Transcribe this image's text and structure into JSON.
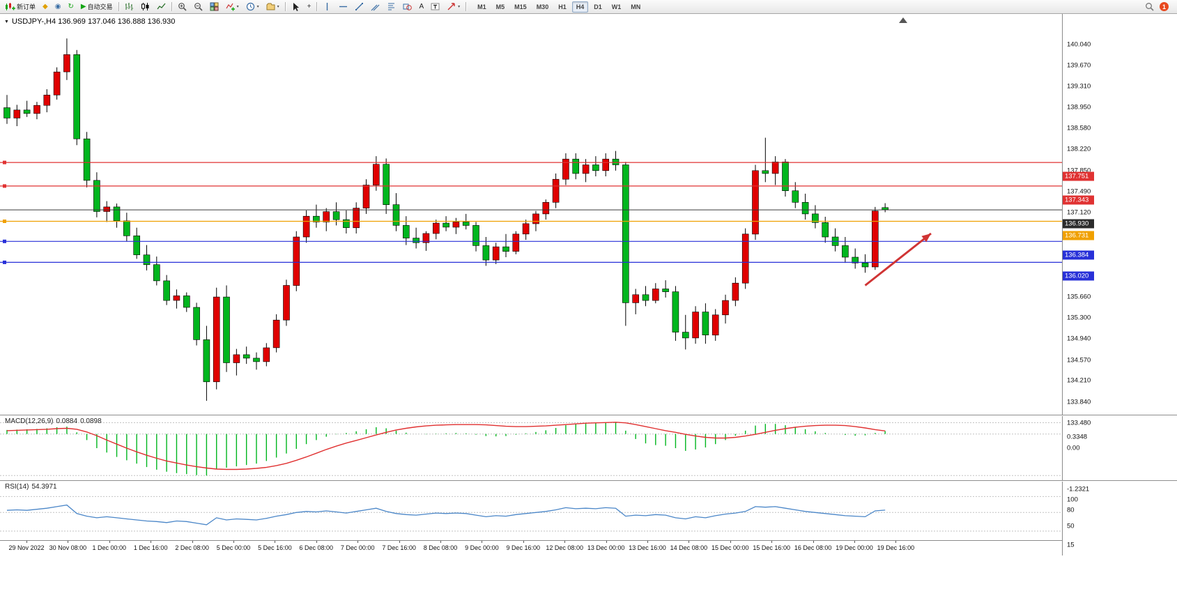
{
  "toolbar": {
    "new_order_label": "新订单",
    "autotrading_label": "自动交易",
    "notification_count": "1",
    "timeframes": [
      "M1",
      "M5",
      "M15",
      "M30",
      "H1",
      "H4",
      "D1",
      "W1",
      "MN"
    ],
    "active_timeframe": "H4",
    "buttons": [
      {
        "name": "new-order-button",
        "shape": "newOrder",
        "label": "新订单"
      },
      {
        "name": "economic-calendar-button",
        "glyph": "◆",
        "color": "#e0a000",
        "icon": "calendar-icon"
      },
      {
        "name": "market-depth-button",
        "glyph": "◉",
        "color": "#3a6ea5",
        "icon": "market-depth-icon"
      },
      {
        "name": "refresh-button",
        "glyph": "↻",
        "color": "#13a513",
        "icon": "refresh-icon"
      },
      {
        "name": "autotrading-button",
        "glyph": "▶",
        "color": "#13a513",
        "icon": "autotrading-play-icon",
        "label": "自动交易"
      },
      {
        "sep": true
      },
      {
        "name": "bar-chart-button",
        "shape": "bars"
      },
      {
        "name": "candlestick-chart-button",
        "shape": "candles"
      },
      {
        "name": "line-chart-button",
        "shape": "linechart"
      },
      {
        "sep": true
      },
      {
        "name": "zoom-in-button",
        "shape": "zoomin"
      },
      {
        "name": "zoom-out-button",
        "shape": "zoomout"
      },
      {
        "name": "tile-windows-button",
        "shape": "tile"
      },
      {
        "name": "indicators-button",
        "shape": "indicators",
        "caret": true
      },
      {
        "name": "periods-button",
        "shape": "clock",
        "caret": true
      },
      {
        "name": "templates-button",
        "shape": "templates",
        "caret": true
      },
      {
        "sep": true
      },
      {
        "name": "cursor-button",
        "shape": "cursor"
      },
      {
        "name": "crosshair-button",
        "glyph": "+",
        "color": "#333",
        "icon": "crosshair-icon"
      },
      {
        "sep": true
      },
      {
        "name": "vertical-line-button",
        "shape": "vline"
      },
      {
        "name": "horizontal-line-button",
        "shape": "hline"
      },
      {
        "name": "trendline-button",
        "shape": "tline"
      },
      {
        "name": "channel-button",
        "shape": "channel"
      },
      {
        "name": "fibonacci-button",
        "shape": "fibo"
      },
      {
        "name": "shapes-button",
        "shape": "shapes"
      },
      {
        "name": "text-button",
        "glyph": "A",
        "color": "#222",
        "icon": "text-icon"
      },
      {
        "name": "text-label-button",
        "shape": "labelT"
      },
      {
        "name": "arrows-button",
        "shape": "arrows",
        "caret": true
      },
      {
        "sep": true
      }
    ]
  },
  "chart": {
    "symbol": "USDJPY-",
    "period": "H4",
    "title": "USDJPY-,H4  136.969 137.046 136.888 136.930",
    "ohlc": {
      "open": "136.969",
      "high": "137.046",
      "low": "136.888",
      "close": "136.930"
    }
  },
  "indicators": {
    "macd": {
      "name": "MACD(12,26,9)",
      "value_main": "0.0884",
      "value_signal": "0.0898"
    },
    "rsi": {
      "name": "RSI(14)",
      "value": "54.3971"
    }
  },
  "chart_data": {
    "type": "candlestick",
    "title": "USDJPY- H4",
    "ylim": [
      133.42,
      140.24
    ],
    "grid": false,
    "colors": {
      "up": "#e00000",
      "down": "#00b61e",
      "wick": "#000000",
      "macd_hist": "#00b61e",
      "macd_signal": "#e03030",
      "rsi": "#4a86c8",
      "arrow": "#d03434"
    },
    "price_axis_ticks": [
      "140.040",
      "139.670",
      "139.310",
      "138.950",
      "138.580",
      "138.220",
      "137.850",
      "137.490",
      "137.120",
      "135.660",
      "135.300",
      "134.940",
      "134.570",
      "134.210",
      "133.840",
      "133.480"
    ],
    "levels": [
      {
        "name": "resistance-line-1",
        "price": 137.751,
        "label": "137.751",
        "color": "#e03232"
      },
      {
        "name": "resistance-line-2",
        "price": 137.343,
        "label": "137.343",
        "color": "#e03232"
      },
      {
        "name": "current-price-line",
        "price": 136.93,
        "label": "136.930",
        "color": "#3a3a3a",
        "current": true
      },
      {
        "name": "pivot-line",
        "price": 136.731,
        "label": "136.731",
        "color": "#f0a000"
      },
      {
        "name": "support-line-1",
        "price": 136.384,
        "label": "136.384",
        "color": "#2830d8"
      },
      {
        "name": "support-line-2",
        "price": 136.02,
        "label": "136.020",
        "color": "#2830d8"
      }
    ],
    "arrow": {
      "from": {
        "bar": 86.0,
        "price": 135.62
      },
      "to": {
        "bar": 92.6,
        "price": 136.52
      }
    },
    "time_labels": [
      "29 Nov 2022",
      "30 Nov 08:00",
      "1 Dec 00:00",
      "1 Dec 16:00",
      "2 Dec 08:00",
      "5 Dec 00:00",
      "5 Dec 16:00",
      "6 Dec 08:00",
      "7 Dec 00:00",
      "7 Dec 16:00",
      "8 Dec 08:00",
      "9 Dec 00:00",
      "9 Dec 16:00",
      "12 Dec 08:00",
      "13 Dec 00:00",
      "13 Dec 16:00",
      "14 Dec 08:00",
      "15 Dec 00:00",
      "15 Dec 16:00",
      "16 Dec 08:00",
      "19 Dec 00:00",
      "19 Dec 16:00"
    ],
    "candles": [
      [
        138.7,
        138.92,
        138.42,
        138.52
      ],
      [
        138.52,
        138.75,
        138.38,
        138.66
      ],
      [
        138.66,
        138.82,
        138.54,
        138.6
      ],
      [
        138.6,
        138.8,
        138.5,
        138.74
      ],
      [
        138.74,
        139.02,
        138.62,
        138.92
      ],
      [
        138.92,
        139.4,
        138.84,
        139.32
      ],
      [
        139.32,
        139.9,
        139.18,
        139.62
      ],
      [
        139.62,
        139.7,
        138.05,
        138.16
      ],
      [
        138.16,
        138.28,
        137.32,
        137.44
      ],
      [
        137.44,
        137.58,
        136.8,
        136.9
      ],
      [
        136.9,
        137.08,
        136.72,
        136.98
      ],
      [
        136.98,
        137.04,
        136.62,
        136.74
      ],
      [
        136.74,
        136.88,
        136.38,
        136.48
      ],
      [
        136.48,
        136.62,
        136.08,
        136.15
      ],
      [
        136.15,
        136.32,
        135.88,
        135.98
      ],
      [
        135.98,
        136.12,
        135.62,
        135.7
      ],
      [
        135.7,
        135.8,
        135.28,
        135.36
      ],
      [
        135.36,
        135.55,
        135.22,
        135.44
      ],
      [
        135.44,
        135.5,
        135.16,
        135.24
      ],
      [
        135.24,
        135.32,
        134.58,
        134.68
      ],
      [
        134.68,
        134.92,
        133.62,
        133.95
      ],
      [
        133.95,
        135.58,
        133.82,
        135.42
      ],
      [
        135.42,
        135.62,
        134.12,
        134.28
      ],
      [
        134.28,
        134.52,
        134.06,
        134.42
      ],
      [
        134.42,
        134.56,
        134.26,
        134.36
      ],
      [
        134.36,
        134.46,
        134.16,
        134.3
      ],
      [
        134.3,
        134.62,
        134.22,
        134.54
      ],
      [
        134.54,
        135.12,
        134.46,
        135.02
      ],
      [
        135.02,
        135.72,
        134.92,
        135.62
      ],
      [
        135.62,
        136.56,
        135.52,
        136.46
      ],
      [
        136.46,
        136.92,
        136.36,
        136.82
      ],
      [
        136.82,
        137.02,
        136.62,
        136.72
      ],
      [
        136.72,
        136.96,
        136.56,
        136.9
      ],
      [
        136.9,
        137.06,
        136.66,
        136.76
      ],
      [
        136.76,
        136.92,
        136.52,
        136.62
      ],
      [
        136.62,
        137.06,
        136.52,
        136.96
      ],
      [
        136.96,
        137.46,
        136.86,
        137.36
      ],
      [
        137.36,
        137.86,
        137.26,
        137.72
      ],
      [
        137.72,
        137.82,
        136.86,
        137.02
      ],
      [
        137.02,
        137.22,
        136.56,
        136.66
      ],
      [
        136.66,
        136.82,
        136.32,
        136.44
      ],
      [
        136.44,
        136.62,
        136.26,
        136.36
      ],
      [
        136.36,
        136.56,
        136.22,
        136.52
      ],
      [
        136.52,
        136.76,
        136.42,
        136.7
      ],
      [
        136.7,
        136.82,
        136.56,
        136.63
      ],
      [
        136.63,
        136.79,
        136.51,
        136.72
      ],
      [
        136.72,
        136.86,
        136.59,
        136.66
      ],
      [
        136.66,
        136.72,
        136.21,
        136.31
      ],
      [
        136.31,
        136.46,
        135.96,
        136.06
      ],
      [
        136.06,
        136.36,
        135.99,
        136.29
      ],
      [
        136.29,
        136.51,
        136.11,
        136.21
      ],
      [
        136.21,
        136.56,
        136.16,
        136.51
      ],
      [
        136.51,
        136.76,
        136.41,
        136.69
      ],
      [
        136.69,
        136.91,
        136.56,
        136.86
      ],
      [
        136.86,
        137.11,
        136.76,
        137.06
      ],
      [
        137.06,
        137.56,
        136.96,
        137.46
      ],
      [
        137.46,
        137.91,
        137.36,
        137.81
      ],
      [
        137.81,
        137.91,
        137.46,
        137.56
      ],
      [
        137.56,
        137.81,
        137.41,
        137.71
      ],
      [
        137.71,
        137.86,
        137.51,
        137.61
      ],
      [
        137.61,
        137.91,
        137.51,
        137.81
      ],
      [
        137.81,
        137.95,
        137.61,
        137.71
      ],
      [
        137.71,
        137.76,
        134.92,
        135.32
      ],
      [
        135.32,
        135.56,
        135.12,
        135.46
      ],
      [
        135.46,
        135.61,
        135.26,
        135.36
      ],
      [
        135.36,
        135.66,
        135.31,
        135.56
      ],
      [
        135.56,
        135.71,
        135.41,
        135.51
      ],
      [
        135.51,
        135.61,
        134.66,
        134.81
      ],
      [
        134.81,
        135.11,
        134.51,
        134.71
      ],
      [
        134.71,
        135.26,
        134.61,
        135.16
      ],
      [
        135.16,
        135.31,
        134.61,
        134.76
      ],
      [
        134.76,
        135.21,
        134.66,
        135.11
      ],
      [
        135.11,
        135.46,
        134.96,
        135.36
      ],
      [
        135.36,
        135.76,
        135.26,
        135.66
      ],
      [
        135.66,
        136.61,
        135.56,
        136.51
      ],
      [
        136.51,
        137.71,
        136.41,
        137.61
      ],
      [
        137.61,
        138.18,
        137.41,
        137.56
      ],
      [
        137.56,
        137.86,
        137.36,
        137.76
      ],
      [
        137.76,
        137.81,
        137.16,
        137.26
      ],
      [
        137.26,
        137.41,
        136.96,
        137.06
      ],
      [
        137.06,
        137.21,
        136.76,
        136.86
      ],
      [
        136.86,
        137.01,
        136.61,
        136.71
      ],
      [
        136.71,
        136.81,
        136.36,
        136.46
      ],
      [
        136.46,
        136.61,
        136.21,
        136.31
      ],
      [
        136.31,
        136.46,
        136.01,
        136.11
      ],
      [
        136.11,
        136.26,
        135.91,
        136.01
      ],
      [
        136.01,
        136.16,
        135.84,
        135.94
      ],
      [
        135.94,
        136.98,
        135.89,
        136.91
      ],
      [
        136.969,
        137.046,
        136.888,
        136.93
      ]
    ],
    "macd": {
      "axis": [
        {
          "label": "0.3348",
          "value": 0.3348
        },
        {
          "label": "0.00",
          "value": 0
        },
        {
          "label": "-1.2321",
          "value": -1.2321
        }
      ],
      "hist": [
        0.12,
        0.13,
        0.14,
        0.15,
        0.17,
        0.2,
        0.22,
        0.05,
        -0.18,
        -0.42,
        -0.55,
        -0.68,
        -0.78,
        -0.88,
        -0.98,
        -1.06,
        -1.12,
        -1.16,
        -1.19,
        -1.22,
        -1.2321,
        -1.05,
        -1.0,
        -0.96,
        -0.92,
        -0.88,
        -0.8,
        -0.7,
        -0.58,
        -0.44,
        -0.3,
        -0.18,
        -0.08,
        -0.01,
        0.03,
        0.08,
        0.14,
        0.2,
        0.17,
        0.1,
        0.04,
        0.0,
        -0.01,
        0.01,
        0.02,
        0.03,
        0.02,
        -0.02,
        -0.06,
        -0.07,
        -0.06,
        -0.02,
        0.02,
        0.06,
        0.11,
        0.18,
        0.26,
        0.3,
        0.31,
        0.32,
        0.33,
        0.3348,
        0.1,
        -0.15,
        -0.28,
        -0.33,
        -0.35,
        -0.42,
        -0.5,
        -0.46,
        -0.4,
        -0.3,
        -0.18,
        -0.05,
        0.1,
        0.25,
        0.3,
        0.3,
        0.26,
        0.2,
        0.14,
        0.08,
        0.03,
        0.0,
        -0.03,
        -0.05,
        -0.04,
        0.03,
        0.0884
      ],
      "signal": [
        0.1,
        0.11,
        0.12,
        0.13,
        0.14,
        0.16,
        0.17,
        0.14,
        0.06,
        -0.05,
        -0.18,
        -0.3,
        -0.42,
        -0.53,
        -0.63,
        -0.72,
        -0.8,
        -0.86,
        -0.92,
        -0.97,
        -1.01,
        -1.04,
        -1.05,
        -1.05,
        -1.04,
        -1.02,
        -0.99,
        -0.94,
        -0.87,
        -0.78,
        -0.68,
        -0.57,
        -0.46,
        -0.36,
        -0.27,
        -0.19,
        -0.11,
        -0.03,
        0.05,
        0.12,
        0.17,
        0.21,
        0.24,
        0.26,
        0.27,
        0.28,
        0.28,
        0.28,
        0.27,
        0.25,
        0.23,
        0.22,
        0.22,
        0.23,
        0.24,
        0.26,
        0.28,
        0.3,
        0.32,
        0.33,
        0.34,
        0.35,
        0.33,
        0.28,
        0.22,
        0.16,
        0.1,
        0.05,
        -0.01,
        -0.06,
        -0.1,
        -0.12,
        -0.12,
        -0.1,
        -0.06,
        -0.01,
        0.05,
        0.11,
        0.16,
        0.2,
        0.23,
        0.25,
        0.26,
        0.26,
        0.25,
        0.22,
        0.18,
        0.13,
        0.0898
      ]
    },
    "rsi": {
      "axis": [
        {
          "label": "100",
          "value": 100
        },
        {
          "label": "80",
          "value": 80,
          "dashed": true
        },
        {
          "label": "50",
          "value": 50,
          "dashed": true
        },
        {
          "label": "15",
          "value": 15,
          "dashed": true
        }
      ],
      "values": [
        54,
        55,
        54,
        56,
        58,
        61,
        64,
        48,
        43,
        40,
        42,
        40,
        38,
        36,
        34,
        33,
        31,
        34,
        33,
        30,
        27,
        40,
        36,
        38,
        37,
        36,
        39,
        43,
        46,
        50,
        52,
        51,
        53,
        51,
        49,
        52,
        55,
        58,
        52,
        48,
        46,
        45,
        47,
        49,
        48,
        49,
        48,
        45,
        42,
        44,
        43,
        46,
        48,
        50,
        52,
        55,
        59,
        57,
        58,
        57,
        59,
        58,
        43,
        45,
        44,
        46,
        45,
        40,
        38,
        42,
        40,
        44,
        47,
        49,
        52,
        61,
        60,
        61,
        58,
        55,
        52,
        50,
        48,
        46,
        44,
        43,
        42,
        53,
        54.3971
      ]
    }
  }
}
